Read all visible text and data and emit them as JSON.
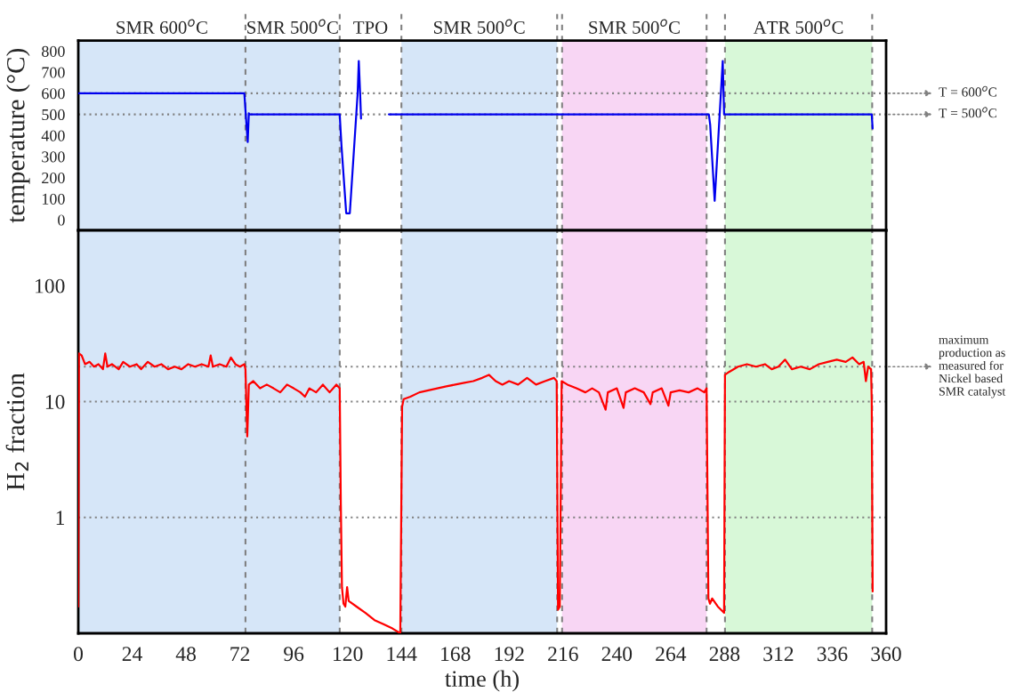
{
  "chart_data": [
    {
      "type": "line",
      "ylabel": "temperature (°C)",
      "xlim": [
        0,
        360
      ],
      "xticks": [
        0,
        24,
        48,
        72,
        96,
        120,
        144,
        168,
        192,
        216,
        240,
        264,
        288,
        312,
        336,
        360
      ],
      "ylim": [
        -50,
        850
      ],
      "yticks": [
        0,
        100,
        200,
        300,
        400,
        500,
        600,
        700,
        800
      ],
      "tick_labels": "y",
      "grid": false,
      "annotations": [
        "TPO"
      ],
      "x": [
        0,
        74,
        74.6,
        75.5,
        76,
        76.3,
        116.5,
        117.3,
        119.4,
        121,
        124.5,
        125,
        125.6,
        126,
        126.1,
        138.4,
        281,
        281.6,
        283.6,
        287.2,
        287.8,
        288.3,
        353.6,
        354
      ],
      "series": [
        {
          "color": "#0000ee",
          "values": [
            600,
            600,
            505,
            369,
            505,
            500,
            500,
            350,
            31,
            31,
            600,
            753,
            600,
            480,
            null,
            500,
            500,
            450,
            90,
            753,
            500,
            500,
            500,
            433
          ]
        }
      ],
      "ref_lines": [
        {
          "axis": "y",
          "value": 600,
          "label": "T = 600$^{o}$C",
          "color": "#808080",
          "line_style": "dotted"
        },
        {
          "axis": "y",
          "value": 500,
          "label": "T = 500$^{o}$C",
          "color": "#808080",
          "line_style": "dotted"
        },
        {
          "axis": "x",
          "value": 74.5,
          "color": "#808080",
          "line_style": "dashed"
        },
        {
          "axis": "x",
          "value": 116.5,
          "color": "#808080",
          "line_style": "dashed"
        },
        {
          "axis": "x",
          "value": 144,
          "color": "#808080",
          "line_style": "dashed"
        },
        {
          "axis": "x",
          "value": 213.4,
          "color": "#808080",
          "line_style": "dashed"
        },
        {
          "axis": "x",
          "value": 215.6,
          "color": "#808080",
          "line_style": "dashed"
        },
        {
          "axis": "x",
          "value": 280,
          "color": "#808080",
          "line_style": "dashed"
        },
        {
          "axis": "x",
          "value": 288.2,
          "color": "#808080",
          "line_style": "dashed"
        },
        {
          "axis": "x",
          "value": 353.8,
          "color": "#808080",
          "line_style": "dashed"
        }
      ],
      "bands": [
        {
          "axis": "x",
          "from": 0,
          "to": 74.5,
          "label": "SMR 600$^{o}$C",
          "color": "#d6e6f8"
        },
        {
          "axis": "x",
          "from": 74.5,
          "to": 116.5,
          "label": "SMR 500$^{o}$C",
          "color": "#d6e6f8"
        },
        {
          "axis": "x",
          "from": 144,
          "to": 213.4,
          "label": "SMR 500$^{o}$C",
          "color": "#d6e6f8"
        },
        {
          "axis": "x",
          "from": 215.6,
          "to": 280,
          "label": "SMR 500$^{o}$C",
          "color": "#f8d6f4"
        },
        {
          "axis": "x",
          "from": 288.2,
          "to": 353.8,
          "label": "ATR 500$^{o}$C",
          "color": "#d8f8d8"
        }
      ]
    },
    {
      "type": "line",
      "xlabel": "time (h)",
      "ylabel": "H$_{2}$ fraction",
      "log": "y",
      "xlim": [
        0,
        360
      ],
      "xticks": [
        0,
        24,
        48,
        72,
        96,
        120,
        144,
        168,
        192,
        216,
        240,
        264,
        288,
        312,
        336,
        360
      ],
      "ylim": [
        0.1,
        300
      ],
      "yticks": [
        1,
        10,
        100
      ],
      "grid": false,
      "x": [
        0,
        0.3,
        1.5,
        3,
        5,
        7,
        9,
        11,
        12,
        13,
        15,
        18,
        20,
        23,
        26,
        28,
        31,
        34,
        37,
        40,
        43,
        46,
        49,
        52,
        55,
        58,
        59,
        60,
        63,
        66,
        68,
        70,
        72,
        74,
        74.5,
        75.3,
        76,
        78,
        81,
        84,
        87,
        90,
        93,
        96,
        99,
        101,
        103,
        106,
        109,
        112,
        115,
        116.5,
        117,
        117.5,
        118.2,
        119,
        119.8,
        120.5,
        124,
        128,
        132,
        136,
        140,
        143.5,
        144.3,
        145,
        148,
        152,
        156,
        160,
        164,
        168,
        172,
        176,
        180,
        183,
        186,
        189,
        192,
        196,
        200,
        204,
        208,
        212,
        213.2,
        213.8,
        214.6,
        215.4,
        218,
        222,
        226,
        229,
        232,
        235,
        236,
        240,
        243,
        244,
        248,
        252,
        255,
        256,
        260,
        263,
        264,
        268,
        272,
        276,
        279,
        280,
        280.8,
        281.5,
        282.5,
        285,
        287.8,
        288.2,
        290,
        294,
        298,
        302,
        306,
        309,
        312,
        315,
        318,
        322,
        326,
        330,
        334,
        338,
        342,
        345,
        348,
        350,
        351,
        352,
        353.3,
        353.6,
        354
      ],
      "series": [
        {
          "color": "#ff0000",
          "values": [
            0.17,
            26,
            25,
            21,
            22,
            20,
            21,
            19,
            26,
            20,
            21,
            19,
            22,
            20,
            21,
            19,
            22,
            20,
            21,
            19,
            20,
            19,
            21,
            20,
            21,
            20,
            25,
            20,
            21,
            20,
            24,
            21,
            20,
            21,
            19,
            5,
            14,
            15,
            13,
            14,
            13,
            12,
            14,
            13,
            12,
            11,
            13,
            12,
            14,
            12,
            14,
            13,
            1.3,
            0.25,
            0.18,
            0.17,
            0.25,
            0.19,
            0.17,
            0.15,
            0.13,
            0.12,
            0.11,
            0.1,
            9,
            10.5,
            11,
            12,
            12.5,
            13,
            13.5,
            14,
            14.5,
            15,
            16,
            17,
            15,
            14,
            15,
            14,
            16,
            14,
            15,
            16,
            15,
            0.16,
            0.17,
            15,
            14,
            13,
            12,
            13,
            12,
            8.5,
            12,
            13,
            8.8,
            12,
            13,
            12,
            9.5,
            12,
            13,
            9.2,
            12,
            12.5,
            12,
            13,
            12,
            13,
            0.2,
            0.18,
            0.2,
            0.17,
            0.15,
            17,
            18,
            20,
            21,
            20,
            21,
            19,
            20,
            23,
            19,
            20,
            19,
            21,
            22,
            23,
            22,
            24,
            21,
            22,
            15,
            20,
            19,
            10,
            0.23
          ]
        }
      ],
      "ref_lines": [
        {
          "axis": "y",
          "value": 20,
          "label": "maximum production as measured for Nickel based SMR catalyst",
          "color": "#808080",
          "line_style": "dotted"
        },
        {
          "axis": "y",
          "value": 10,
          "color": "#808080",
          "line_style": "dotted"
        },
        {
          "axis": "y",
          "value": 1,
          "color": "#808080",
          "line_style": "dotted"
        },
        {
          "axis": "x",
          "value": 74.5,
          "color": "#808080",
          "line_style": "dashed"
        },
        {
          "axis": "x",
          "value": 116.5,
          "color": "#808080",
          "line_style": "dashed"
        },
        {
          "axis": "x",
          "value": 144,
          "color": "#808080",
          "line_style": "dashed"
        },
        {
          "axis": "x",
          "value": 213.4,
          "color": "#808080",
          "line_style": "dashed"
        },
        {
          "axis": "x",
          "value": 215.6,
          "color": "#808080",
          "line_style": "dashed"
        },
        {
          "axis": "x",
          "value": 280,
          "color": "#808080",
          "line_style": "dashed"
        },
        {
          "axis": "x",
          "value": 288.2,
          "color": "#808080",
          "line_style": "dashed"
        },
        {
          "axis": "x",
          "value": 353.8,
          "color": "#808080",
          "line_style": "dashed"
        }
      ],
      "bands": [
        {
          "axis": "x",
          "from": 0,
          "to": 116.5,
          "color": "#d6e6f8"
        },
        {
          "axis": "x",
          "from": 144,
          "to": 213.4,
          "color": "#d6e6f8"
        },
        {
          "axis": "x",
          "from": 215.6,
          "to": 280,
          "color": "#f8d6f4"
        },
        {
          "axis": "x",
          "from": 288.2,
          "to": 353.8,
          "color": "#d8f8d8"
        }
      ]
    }
  ]
}
